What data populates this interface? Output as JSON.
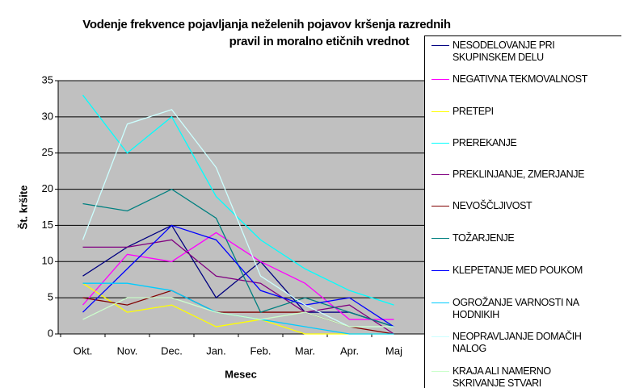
{
  "chart_data": {
    "type": "line",
    "title": [
      "Vodenje frekvence  pojavljanja neželenih pojavov  kršenja razrednih",
      "pravil in  moralno etičnih vrednot"
    ],
    "x_label": "Mesec",
    "y_label": "Št. kršite",
    "categories": [
      "Okt.",
      "Nov.",
      "Dec.",
      "Jan.",
      "Feb.",
      "Mar.",
      "Apr.",
      "Maj"
    ],
    "ylim": [
      0,
      35
    ],
    "yticks": [
      0,
      5,
      10,
      15,
      20,
      25,
      30,
      35
    ],
    "grid": true,
    "legend": "right",
    "series": [
      {
        "name": "NESODELOVANJE PRI SKUPINSKEM DELU",
        "color": "#000080",
        "values": [
          8,
          12,
          15,
          5,
          10,
          3,
          3,
          1
        ]
      },
      {
        "name": "NEGATIVNA TEKMOVALNOST",
        "color": "#ff00ff",
        "values": [
          4,
          11,
          10,
          14,
          10,
          7,
          2,
          2
        ]
      },
      {
        "name": "PRETEPI",
        "color": "#ffff00",
        "values": [
          7,
          3,
          4,
          1,
          2,
          0,
          0,
          0
        ]
      },
      {
        "name": "PREREKANJE",
        "color": "#00ffff",
        "values": [
          33,
          25,
          30,
          19,
          13,
          9,
          6,
          4
        ]
      },
      {
        "name": "PREKLINJANJE, ZMERJANJE",
        "color": "#800080",
        "values": [
          12,
          12,
          13,
          8,
          7,
          3,
          4,
          0
        ]
      },
      {
        "name": "NEVOŠČLJIVOST",
        "color": "#800000",
        "values": [
          5,
          4,
          6,
          3,
          3,
          3,
          1,
          0
        ]
      },
      {
        "name": "TOŽARJENJE",
        "color": "#008080",
        "values": [
          18,
          17,
          20,
          16,
          3,
          5,
          3,
          1
        ]
      },
      {
        "name": "KLEPETANJE MED POUKOM",
        "color": "#0000ff",
        "values": [
          3,
          9,
          15,
          13,
          6,
          4,
          5,
          1
        ]
      },
      {
        "name": "OGROŽANJE VARNOSTI NA HODNIKIH",
        "color": "#00ccff",
        "values": [
          7,
          7,
          6,
          3,
          2,
          1,
          0,
          0
        ]
      },
      {
        "name": "NEOPRAVLJANJE DOMAČIH NALOG",
        "color": "#ccffff",
        "values": [
          13,
          29,
          31,
          23,
          8,
          4,
          1,
          1
        ]
      },
      {
        "name": "KRAJA ALI NAMERNO SKRIVANJE STVARI",
        "color": "#ccffcc",
        "values": [
          2,
          5,
          5,
          3,
          2,
          3,
          1,
          1
        ]
      }
    ]
  }
}
